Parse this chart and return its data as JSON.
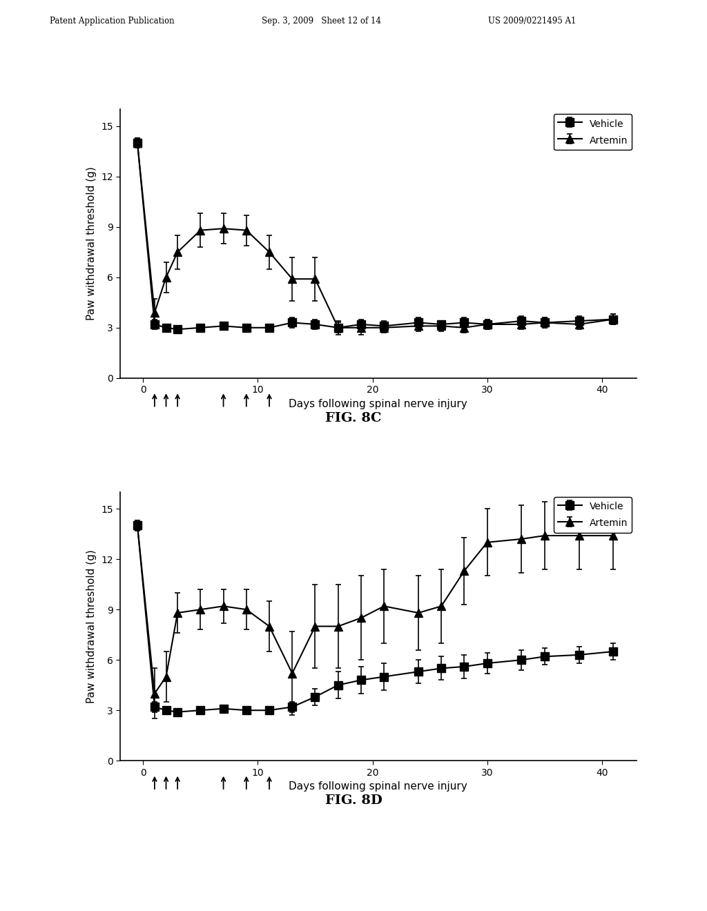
{
  "header_left": "Patent Application Publication",
  "header_mid": "Sep. 3, 2009   Sheet 12 of 14",
  "header_right": "US 2009/0221495 A1",
  "fig8c": {
    "title": "FIG. 8C",
    "vehicle_x": [
      -0.5,
      1,
      2,
      3,
      5,
      7,
      9,
      11,
      13,
      15,
      17,
      19,
      21,
      24,
      26,
      28,
      30,
      33,
      35,
      38,
      41
    ],
    "vehicle_y": [
      14.0,
      3.2,
      3.0,
      2.9,
      3.0,
      3.1,
      3.0,
      3.0,
      3.3,
      3.2,
      3.0,
      3.2,
      3.1,
      3.3,
      3.2,
      3.3,
      3.2,
      3.4,
      3.3,
      3.4,
      3.5
    ],
    "vehicle_err": [
      0.3,
      0.3,
      0.2,
      0.2,
      0.2,
      0.2,
      0.2,
      0.2,
      0.3,
      0.3,
      0.3,
      0.3,
      0.3,
      0.3,
      0.2,
      0.3,
      0.3,
      0.3,
      0.3,
      0.3,
      0.3
    ],
    "artemin_x": [
      -0.5,
      1,
      2,
      3,
      5,
      7,
      9,
      11,
      13,
      15,
      17,
      19,
      21,
      24,
      26,
      28,
      30,
      33,
      35,
      38,
      41
    ],
    "artemin_y": [
      14.0,
      3.9,
      6.0,
      7.5,
      8.8,
      8.9,
      8.8,
      7.5,
      5.9,
      5.9,
      3.0,
      3.0,
      3.0,
      3.1,
      3.1,
      3.0,
      3.2,
      3.2,
      3.3,
      3.2,
      3.5
    ],
    "artemin_err": [
      0.3,
      0.8,
      0.9,
      1.0,
      1.0,
      0.9,
      0.9,
      1.0,
      1.3,
      1.3,
      0.4,
      0.4,
      0.3,
      0.3,
      0.3,
      0.3,
      0.3,
      0.3,
      0.3,
      0.3,
      0.3
    ],
    "arrows_x": [
      1,
      2,
      3,
      7,
      9,
      11
    ],
    "xlabel": "Days following spinal nerve injury",
    "ylabel": "Paw withdrawal threshold (g)",
    "xlim": [
      -2,
      43
    ],
    "ylim": [
      0,
      16
    ],
    "yticks": [
      0,
      3,
      6,
      9,
      12,
      15
    ],
    "xticks": [
      0,
      10,
      20,
      30,
      40
    ],
    "legend_loc": "upper right"
  },
  "fig8d": {
    "title": "FIG. 8D",
    "vehicle_x": [
      -0.5,
      1,
      2,
      3,
      5,
      7,
      9,
      11,
      13,
      15,
      17,
      19,
      21,
      24,
      26,
      28,
      30,
      33,
      35,
      38,
      41
    ],
    "vehicle_y": [
      14.0,
      3.2,
      3.0,
      2.9,
      3.0,
      3.1,
      3.0,
      3.0,
      3.2,
      3.8,
      4.5,
      4.8,
      5.0,
      5.3,
      5.5,
      5.6,
      5.8,
      6.0,
      6.2,
      6.3,
      6.5
    ],
    "vehicle_err": [
      0.3,
      0.3,
      0.2,
      0.2,
      0.2,
      0.2,
      0.2,
      0.2,
      0.3,
      0.5,
      0.8,
      0.8,
      0.8,
      0.7,
      0.7,
      0.7,
      0.6,
      0.6,
      0.5,
      0.5,
      0.5
    ],
    "artemin_x": [
      -0.5,
      1,
      2,
      3,
      5,
      7,
      9,
      11,
      13,
      15,
      17,
      19,
      21,
      24,
      26,
      28,
      30,
      33,
      35,
      38,
      41
    ],
    "artemin_y": [
      14.0,
      4.0,
      5.0,
      8.8,
      9.0,
      9.2,
      9.0,
      8.0,
      5.2,
      8.0,
      8.0,
      8.5,
      9.2,
      8.8,
      9.2,
      11.3,
      13.0,
      13.2,
      13.4,
      13.4,
      13.4
    ],
    "artemin_err": [
      0.3,
      1.5,
      1.5,
      1.2,
      1.2,
      1.0,
      1.2,
      1.5,
      2.5,
      2.5,
      2.5,
      2.5,
      2.2,
      2.2,
      2.2,
      2.0,
      2.0,
      2.0,
      2.0,
      2.0,
      2.0
    ],
    "arrows_x": [
      1,
      2,
      3,
      7,
      9,
      11
    ],
    "xlabel": "Days following spinal nerve injury",
    "ylabel": "Paw withdrawal threshold (g)",
    "xlim": [
      -2,
      43
    ],
    "ylim": [
      0,
      16
    ],
    "yticks": [
      0,
      3,
      6,
      9,
      12,
      15
    ],
    "xticks": [
      0,
      10,
      20,
      30,
      40
    ],
    "legend_loc": "upper right"
  },
  "background_color": "#ffffff",
  "line_color": "#000000"
}
